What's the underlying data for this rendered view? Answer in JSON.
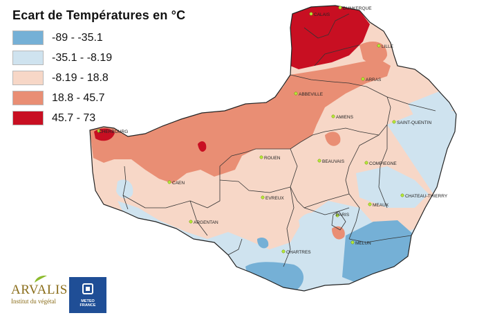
{
  "legend": {
    "title": "Ecart de Températures en °C",
    "classes": [
      {
        "label": "-89 - -35.1",
        "color": "#75b0d6"
      },
      {
        "label": "-35.1 - -8.19",
        "color": "#cfe3ef"
      },
      {
        "label": "-8.19 - 18.8",
        "color": "#f7d7c7"
      },
      {
        "label": "18.8 - 45.7",
        "color": "#e98e74"
      },
      {
        "label": "45.7 - 73",
        "color": "#c80f22"
      }
    ]
  },
  "cities": {
    "dunkerque": "DUNKERQUE",
    "calais": "CALAIS",
    "lille": "LILLE",
    "arras": "ARRAS",
    "abbeville": "ABBEVILLE",
    "amiens": "AMIENS",
    "saint_quentin": "SAINT-QUENTIN",
    "cherbourg": "CHERBOURG",
    "rouen": "ROUEN",
    "beauvais": "BEAUVAIS",
    "compiegne": "COMPIEGNE",
    "caen": "CAEN",
    "evreux": "EVREUX",
    "chateau_thierry": "CHATEAU-THIERRY",
    "meaux": "MEAUX",
    "argentan": "ARGENTAN",
    "paris": "PARIS",
    "chartres": "CHARTRES",
    "melun": "MELUN"
  },
  "logos": {
    "arvalis_name": "ARVALIS",
    "arvalis_subtitle": "Institut du végétal",
    "meteo_name": "METEO\nFRANCE",
    "meteo_icon": "meteo-france-logo-icon"
  }
}
